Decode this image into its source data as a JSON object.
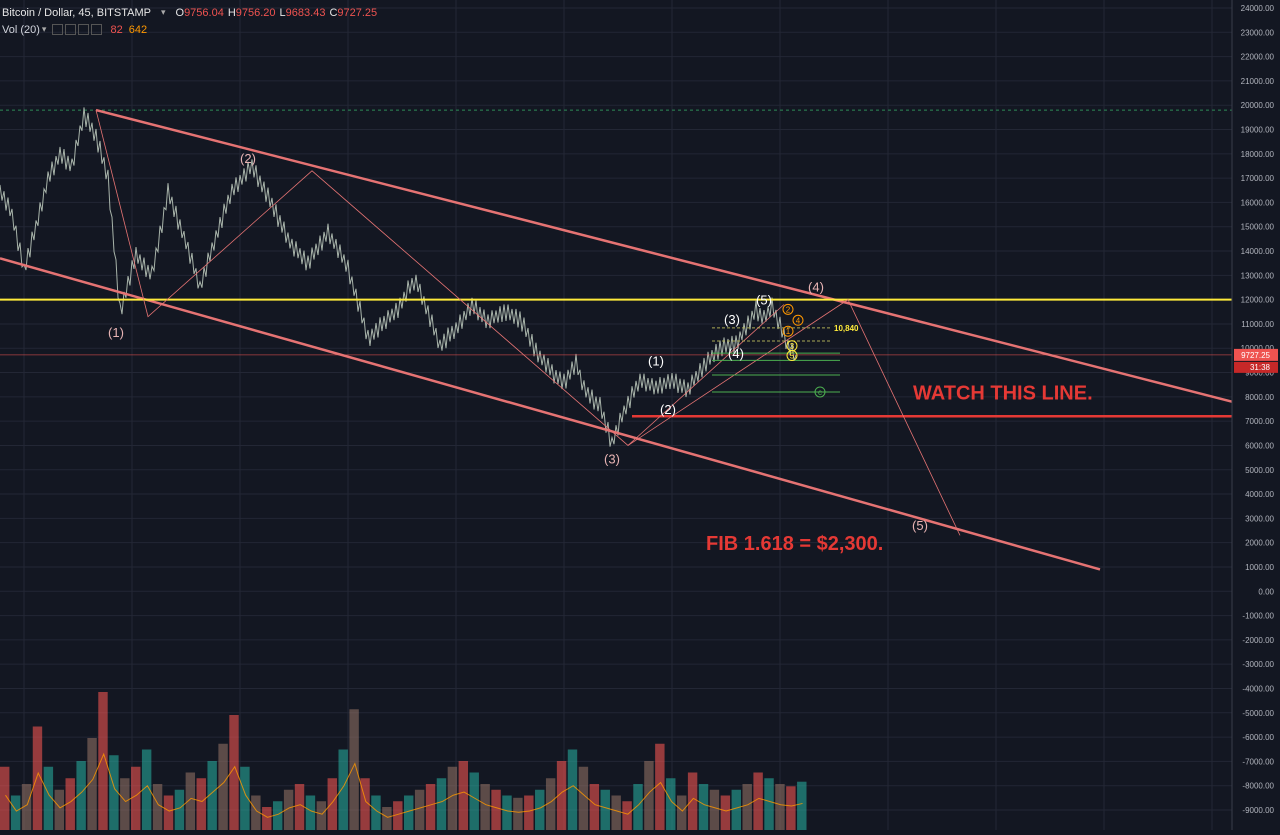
{
  "header": {
    "symbol": "Bitcoin / Dollar, 45, BITSTAMP",
    "o_label": "O",
    "o_value": "9756.04",
    "h_label": "H",
    "h_value": "9756.20",
    "l_label": "L",
    "l_value": "9683.43",
    "c_label": "C",
    "c_value": "9727.25",
    "vol_label": "Vol (20)",
    "vol_a": "82",
    "vol_b": "642"
  },
  "chart_data": {
    "type": "line",
    "instrument": "BTCUSD",
    "ylim": [
      -9000,
      24000
    ],
    "y_ticks": [
      "24000.00",
      "23000.00",
      "22000.00",
      "21000.00",
      "20000.00",
      "19000.00",
      "18000.00",
      "17000.00",
      "16000.00",
      "15000.00",
      "14000.00",
      "13000.00",
      "12000.00",
      "11000.00",
      "10000.00",
      "9000.00",
      "8000.00",
      "7000.00",
      "6000.00",
      "5000.00",
      "4000.00",
      "3000.00",
      "2000.00",
      "1000.00",
      "0.00",
      "-1000.00",
      "-2000.00",
      "-3000.00",
      "-4000.00",
      "-5000.00",
      "-6000.00",
      "-7000.00",
      "-8000.00",
      "-9000.00"
    ],
    "last_price": "9727.25",
    "countdown": "31:38",
    "price_path": [
      [
        0,
        16500
      ],
      [
        3,
        15500
      ],
      [
        6,
        13200
      ],
      [
        9,
        15000
      ],
      [
        12,
        17000
      ],
      [
        15,
        18000
      ],
      [
        18,
        17500
      ],
      [
        21,
        19600
      ],
      [
        24,
        18700
      ],
      [
        27,
        17000
      ],
      [
        30,
        11500
      ],
      [
        34,
        13800
      ],
      [
        38,
        13000
      ],
      [
        42,
        16400
      ],
      [
        46,
        14600
      ],
      [
        50,
        12500
      ],
      [
        54,
        14600
      ],
      [
        58,
        16500
      ],
      [
        63,
        17500
      ],
      [
        68,
        15900
      ],
      [
        73,
        14200
      ],
      [
        77,
        13500
      ],
      [
        82,
        14800
      ],
      [
        87,
        13300
      ],
      [
        92,
        10400
      ],
      [
        97,
        11200
      ],
      [
        100,
        11700
      ],
      [
        102,
        12400
      ],
      [
        104,
        12800
      ],
      [
        106,
        11900
      ],
      [
        110,
        10100
      ],
      [
        114,
        10800
      ],
      [
        118,
        11800
      ],
      [
        122,
        11100
      ],
      [
        126,
        11500
      ],
      [
        130,
        11200
      ],
      [
        134,
        9900
      ],
      [
        138,
        9000
      ],
      [
        141,
        8600
      ],
      [
        144,
        9400
      ],
      [
        146,
        8300
      ],
      [
        150,
        7600
      ],
      [
        153,
        6100
      ],
      [
        156,
        7400
      ],
      [
        160,
        8700
      ],
      [
        164,
        8400
      ],
      [
        168,
        8700
      ],
      [
        172,
        8300
      ],
      [
        176,
        9300
      ],
      [
        180,
        10000
      ],
      [
        184,
        10200
      ],
      [
        187,
        11000
      ],
      [
        189,
        11600
      ],
      [
        191,
        11200
      ],
      [
        193,
        11700
      ],
      [
        195,
        10900
      ],
      [
        197,
        10100
      ],
      [
        199,
        9727
      ]
    ],
    "volume": [
      55,
      30,
      40,
      90,
      55,
      35,
      45,
      60,
      80,
      120,
      65,
      45,
      55,
      70,
      40,
      30,
      35,
      50,
      45,
      60,
      75,
      100,
      55,
      30,
      20,
      25,
      35,
      40,
      30,
      25,
      45,
      70,
      105,
      45,
      30,
      20,
      25,
      30,
      35,
      40,
      45,
      55,
      60,
      50,
      40,
      35,
      30,
      28,
      30,
      35,
      45,
      60,
      70,
      55,
      40,
      35,
      30,
      25,
      40,
      60,
      75,
      45,
      30,
      50,
      40,
      35,
      30,
      35,
      40,
      50,
      45,
      40,
      38,
      42
    ],
    "annotations": {
      "watch": "WATCH THIS LINE.",
      "fib": "FIB 1.618 = $2,300.",
      "fib_level": "10,840",
      "watch_level": 7200,
      "resistance_level": 12000,
      "big_wave_labels": [
        {
          "text": "(1)",
          "x": 29,
          "y": 11200
        },
        {
          "text": "(2)",
          "x": 62,
          "y": 17300
        },
        {
          "text": "(3)",
          "x": 153,
          "y": 6000
        },
        {
          "text": "(4)",
          "x": 204,
          "y": 12000
        },
        {
          "text": "(5)",
          "x": 230,
          "y": 2200
        }
      ],
      "small_wave_labels": [
        {
          "text": "(1)",
          "x": 164,
          "y": 9300
        },
        {
          "text": "(2)",
          "x": 167,
          "y": 7300
        },
        {
          "text": "(3)",
          "x": 183,
          "y": 11000
        },
        {
          "text": "(4)",
          "x": 184,
          "y": 9600
        },
        {
          "text": "(5)",
          "x": 191,
          "y": 11800
        }
      ],
      "micro_labels": [
        "2",
        "1",
        "4",
        "3",
        "5",
        "c"
      ]
    },
    "grid": true
  }
}
